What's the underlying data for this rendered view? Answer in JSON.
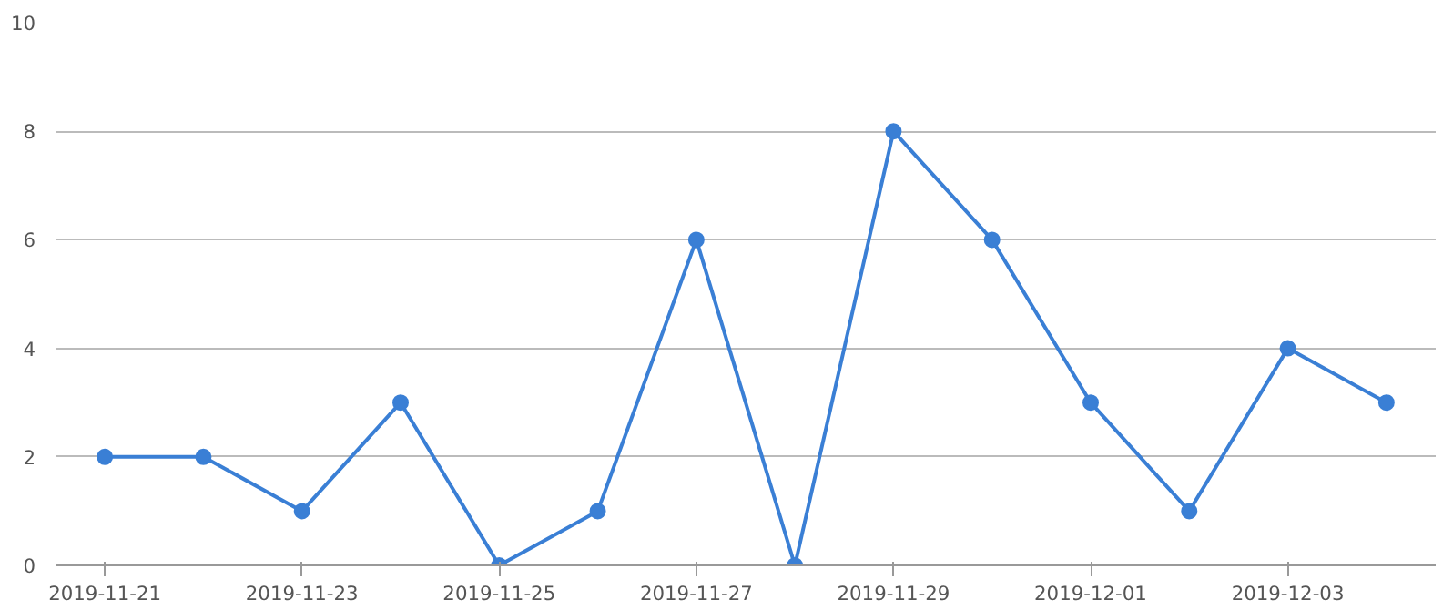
{
  "chart_data": {
    "type": "line",
    "x": [
      "2019-11-21",
      "2019-11-22",
      "2019-11-23",
      "2019-11-24",
      "2019-11-25",
      "2019-11-26",
      "2019-11-27",
      "2019-11-28",
      "2019-11-29",
      "2019-11-30",
      "2019-12-01",
      "2019-12-02",
      "2019-12-03",
      "2019-12-04"
    ],
    "series": [
      {
        "color": "#3a7fd5",
        "values": [
          2,
          2,
          1,
          3,
          0,
          1,
          6,
          0,
          8,
          6,
          3,
          1,
          4,
          3
        ]
      }
    ],
    "xlim": [
      "2019-11-20T12:00",
      "2019-12-04T12:00"
    ],
    "xticks": [
      "2019-11-21",
      "2019-11-23",
      "2019-11-25",
      "2019-11-27",
      "2019-11-29",
      "2019-12-01",
      "2019-12-03"
    ],
    "ylim": [
      0,
      10
    ],
    "yticks": [
      0,
      2,
      4,
      6,
      8,
      10
    ],
    "grid": "y",
    "marker": "circle",
    "line_style": "solid"
  }
}
